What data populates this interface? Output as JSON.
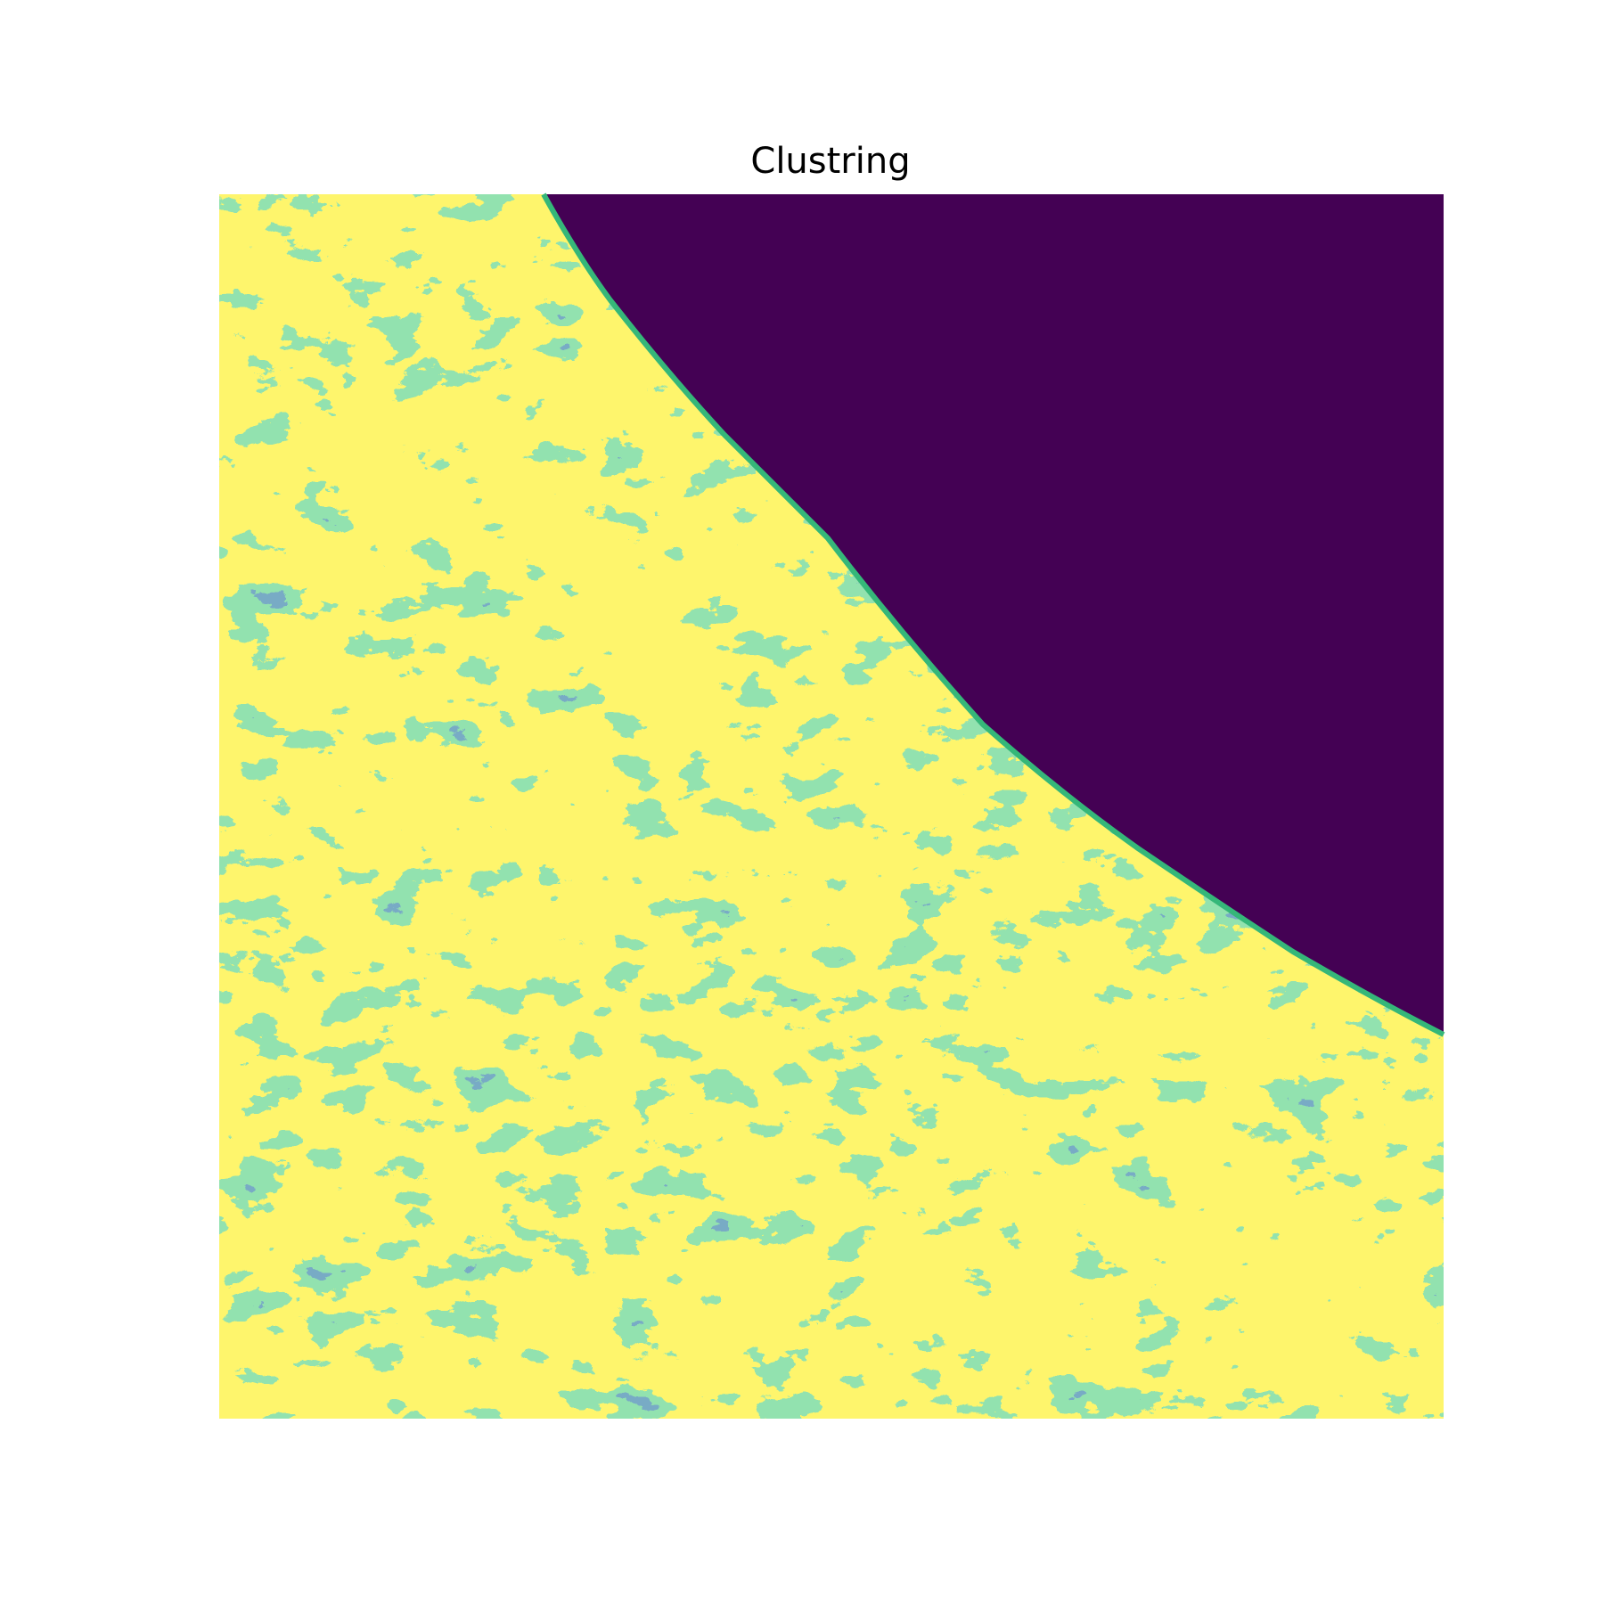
{
  "title": "Clustring"
}
